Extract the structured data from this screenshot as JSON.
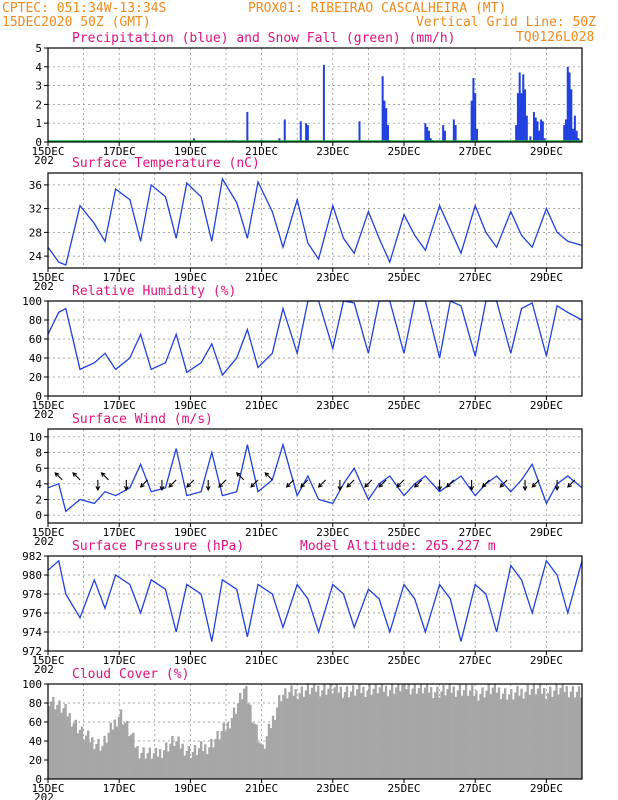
{
  "header": {
    "left1": "CPTEC:  051:34W-13:34S",
    "center1": "PROX01: RIBEIRAO CASCALHEIRA (MT)",
    "left2": "15DEC2020 50Z (GMT)",
    "right2a": "Vertical Grid Line: 50Z",
    "right2b": "TQ0126L028"
  },
  "colors": {
    "header": "#f08a1c",
    "title": "#e0127e",
    "line": "#2040e0",
    "snow": "#1aa83a",
    "cloud": "#a6a6a6",
    "arrow": "#000000"
  },
  "x_labels": [
    "15DEC",
    "17DEC",
    "19DEC",
    "21DEC",
    "23DEC",
    "25DEC",
    "27DEC",
    "29DEC"
  ],
  "stub_label": "202",
  "chart_data": [
    {
      "id": "precip",
      "type": "bar",
      "title": "Precipitation (blue) and Snow Fall (green) (mm/h)",
      "ylim": [
        0,
        5
      ],
      "yticks": [
        "0",
        "1",
        "2",
        "3",
        "4",
        "5"
      ],
      "x_days": [
        0,
        15
      ],
      "series": [
        {
          "name": "Precipitation",
          "x": [
            4.1,
            5.2,
            5.6,
            6.0,
            6.5,
            6.65,
            7.1,
            7.25,
            7.3,
            7.75,
            8.75,
            9.4,
            9.45,
            9.5,
            9.55,
            9.6,
            10.6,
            10.65,
            10.7,
            10.75,
            10.8,
            11.1,
            11.15,
            11.4,
            11.45,
            11.9,
            11.95,
            12.0,
            12.05,
            13.15,
            13.2,
            13.25,
            13.3,
            13.35,
            13.4,
            13.45,
            13.55,
            13.6,
            13.65,
            13.7,
            13.75,
            13.8,
            13.85,
            13.9,
            13.95,
            14.5,
            14.55,
            14.6,
            14.65,
            14.7,
            14.75,
            14.8,
            14.85,
            14.9
          ],
          "values": [
            0.2,
            0.1,
            1.6,
            0.1,
            0.2,
            1.2,
            1.1,
            1.0,
            0.9,
            4.1,
            1.1,
            3.5,
            2.2,
            1.8,
            0.9,
            0.1,
            1.0,
            0.8,
            0.6,
            0.2,
            0.1,
            0.9,
            0.6,
            1.2,
            0.9,
            2.2,
            3.4,
            2.6,
            0.7,
            0.9,
            2.6,
            3.7,
            2.6,
            3.6,
            2.8,
            1.4,
            0.3,
            0.1,
            1.6,
            1.3,
            1.1,
            0.6,
            1.2,
            1.1,
            0.2,
            0.9,
            1.2,
            4.0,
            3.7,
            2.8,
            0.7,
            1.4,
            0.6,
            0.2
          ]
        },
        {
          "name": "Snow Fall",
          "x": [
            0,
            15
          ],
          "values": [
            0,
            0
          ]
        }
      ]
    },
    {
      "id": "temp",
      "type": "line",
      "title": "Surface Temperature (nC)",
      "ylim": [
        22,
        38
      ],
      "yticks": [
        "24",
        "28",
        "32",
        "36"
      ],
      "x_days": [
        0,
        15
      ],
      "x": [
        0.0,
        0.3,
        0.5,
        0.9,
        1.3,
        1.6,
        1.9,
        2.3,
        2.6,
        2.9,
        3.3,
        3.6,
        3.9,
        4.3,
        4.6,
        4.9,
        5.3,
        5.6,
        5.9,
        6.3,
        6.6,
        7.0,
        7.3,
        7.6,
        8.0,
        8.3,
        8.6,
        9.0,
        9.3,
        9.6,
        10.0,
        10.3,
        10.6,
        11.0,
        11.3,
        11.6,
        12.0,
        12.3,
        12.6,
        13.0,
        13.3,
        13.6,
        14.0,
        14.3,
        14.6,
        15.0
      ],
      "values": [
        25.5,
        23,
        22.5,
        32.5,
        29.5,
        26.5,
        35.3,
        33.5,
        26.5,
        36,
        34,
        27,
        36.3,
        34,
        26.5,
        37,
        33,
        27,
        36.5,
        31.5,
        25.5,
        33.5,
        26.2,
        23.5,
        32.5,
        27,
        24.5,
        31.5,
        27,
        23,
        31,
        27.5,
        25,
        32.5,
        28.5,
        24.5,
        32.5,
        28,
        25.5,
        31.5,
        27.5,
        25.5,
        32,
        28,
        26.5,
        25.8
      ]
    },
    {
      "id": "rh",
      "type": "line",
      "title": "Relative Humidity (%)",
      "ylim": [
        0,
        100
      ],
      "yticks": [
        "0",
        "20",
        "40",
        "60",
        "80",
        "100"
      ],
      "x_days": [
        0,
        15
      ],
      "x": [
        0.0,
        0.3,
        0.5,
        0.9,
        1.3,
        1.6,
        1.9,
        2.3,
        2.6,
        2.9,
        3.3,
        3.6,
        3.9,
        4.3,
        4.6,
        4.9,
        5.3,
        5.6,
        5.9,
        6.3,
        6.6,
        7.0,
        7.3,
        7.6,
        8.0,
        8.3,
        8.6,
        9.0,
        9.3,
        9.6,
        10.0,
        10.3,
        10.6,
        11.0,
        11.3,
        11.6,
        12.0,
        12.3,
        12.6,
        13.0,
        13.3,
        13.6,
        14.0,
        14.3,
        14.6,
        15.0
      ],
      "values": [
        65,
        88,
        92,
        28,
        35,
        45,
        28,
        40,
        65,
        28,
        35,
        65,
        25,
        35,
        55,
        22,
        40,
        70,
        30,
        45,
        92,
        45,
        100,
        100,
        50,
        100,
        98,
        45,
        100,
        100,
        45,
        100,
        100,
        40,
        100,
        95,
        42,
        100,
        100,
        45,
        92,
        98,
        42,
        95,
        88,
        80
      ]
    },
    {
      "id": "wind",
      "type": "line",
      "title": "Surface Wind (m/s)",
      "ylim": [
        -1,
        11
      ],
      "yticks": [
        "0",
        "2",
        "4",
        "6",
        "8",
        "10"
      ],
      "x_days": [
        0,
        15
      ],
      "x": [
        0.0,
        0.3,
        0.5,
        0.9,
        1.3,
        1.6,
        1.9,
        2.3,
        2.6,
        2.9,
        3.3,
        3.6,
        3.9,
        4.3,
        4.6,
        4.9,
        5.3,
        5.6,
        5.9,
        6.3,
        6.6,
        7.0,
        7.3,
        7.6,
        8.0,
        8.3,
        8.6,
        9.0,
        9.3,
        9.6,
        10.0,
        10.3,
        10.6,
        11.0,
        11.3,
        11.6,
        12.0,
        12.3,
        12.6,
        13.0,
        13.3,
        13.6,
        14.0,
        14.3,
        14.6,
        15.0
      ],
      "values": [
        3.5,
        4,
        0.5,
        2,
        1.5,
        3,
        2.5,
        3.5,
        6.5,
        3,
        3.5,
        8.5,
        2.5,
        3,
        8,
        2.5,
        3,
        9,
        3,
        4.5,
        9,
        2.5,
        5,
        2,
        1.5,
        4,
        6,
        2,
        4,
        5,
        2.5,
        4,
        5,
        3,
        4,
        5,
        2.5,
        4,
        5,
        3,
        4.5,
        6.5,
        1.5,
        4,
        5,
        3.5
      ],
      "arrows": [
        {
          "x": 0.4,
          "dir": "NW"
        },
        {
          "x": 0.9,
          "dir": "NW"
        },
        {
          "x": 1.4,
          "dir": "S"
        },
        {
          "x": 1.7,
          "dir": "NW"
        },
        {
          "x": 2.2,
          "dir": "S"
        },
        {
          "x": 2.8,
          "dir": "SW"
        },
        {
          "x": 3.2,
          "dir": "S"
        },
        {
          "x": 3.6,
          "dir": "SW"
        },
        {
          "x": 4.1,
          "dir": "SW"
        },
        {
          "x": 4.5,
          "dir": "S"
        },
        {
          "x": 5.0,
          "dir": "SW"
        },
        {
          "x": 5.5,
          "dir": "NW"
        },
        {
          "x": 5.9,
          "dir": "SW"
        },
        {
          "x": 6.3,
          "dir": "NW"
        },
        {
          "x": 6.9,
          "dir": "SW"
        },
        {
          "x": 7.3,
          "dir": "SW"
        },
        {
          "x": 7.8,
          "dir": "SW"
        },
        {
          "x": 8.2,
          "dir": "S"
        },
        {
          "x": 8.6,
          "dir": "SW"
        },
        {
          "x": 9.1,
          "dir": "SW"
        },
        {
          "x": 9.5,
          "dir": "SW"
        },
        {
          "x": 10.0,
          "dir": "SW"
        },
        {
          "x": 10.5,
          "dir": "SW"
        },
        {
          "x": 11.0,
          "dir": "S"
        },
        {
          "x": 11.4,
          "dir": "SW"
        },
        {
          "x": 11.9,
          "dir": "S"
        },
        {
          "x": 12.4,
          "dir": "SW"
        },
        {
          "x": 12.9,
          "dir": "SW"
        },
        {
          "x": 13.4,
          "dir": "S"
        },
        {
          "x": 13.8,
          "dir": "SW"
        },
        {
          "x": 14.3,
          "dir": "S"
        },
        {
          "x": 14.8,
          "dir": "SW"
        }
      ]
    },
    {
      "id": "pres",
      "type": "line",
      "title": "Surface Pressure (hPa)",
      "note": "Model Altitude: 265.227 m",
      "ylim": [
        972,
        982
      ],
      "yticks": [
        "972",
        "974",
        "976",
        "978",
        "980",
        "982"
      ],
      "x_days": [
        0,
        15
      ],
      "x": [
        0.0,
        0.3,
        0.5,
        0.9,
        1.3,
        1.6,
        1.9,
        2.3,
        2.6,
        2.9,
        3.3,
        3.6,
        3.9,
        4.3,
        4.6,
        4.9,
        5.3,
        5.6,
        5.9,
        6.3,
        6.6,
        7.0,
        7.3,
        7.6,
        8.0,
        8.3,
        8.6,
        9.0,
        9.3,
        9.6,
        10.0,
        10.3,
        10.6,
        11.0,
        11.3,
        11.6,
        12.0,
        12.3,
        12.6,
        13.0,
        13.3,
        13.6,
        14.0,
        14.3,
        14.6,
        15.0
      ],
      "values": [
        980.5,
        981.5,
        978,
        975.5,
        979.5,
        976.5,
        980,
        979,
        976,
        979.5,
        978.5,
        974,
        979,
        978,
        973,
        979.5,
        978.5,
        973.5,
        979,
        978,
        974.5,
        979,
        977.5,
        974,
        979,
        978,
        974.5,
        978.5,
        977.5,
        974,
        979,
        977.5,
        974,
        979,
        977.5,
        973,
        979,
        978,
        974,
        981,
        979.5,
        976,
        981.5,
        980,
        976,
        981.5
      ]
    },
    {
      "id": "cloud",
      "type": "bar",
      "title": "Cloud Cover (%)",
      "ylim": [
        0,
        100
      ],
      "yticks": [
        "0",
        "20",
        "40",
        "60",
        "80",
        "100"
      ],
      "x_days": [
        0,
        15
      ],
      "x": [
        0.0,
        0.5,
        1.0,
        1.5,
        2.0,
        2.5,
        3.0,
        3.5,
        4.0,
        4.5,
        5.0,
        5.5,
        6.0,
        6.5,
        7.0,
        7.5,
        8.0,
        8.5,
        9.0,
        9.5,
        10.0,
        10.5,
        11.0,
        11.5,
        12.0,
        12.5,
        13.0,
        13.5,
        14.0,
        14.5,
        15.0
      ],
      "values": [
        85,
        70,
        45,
        35,
        70,
        30,
        25,
        40,
        28,
        35,
        55,
        95,
        30,
        88,
        92,
        95,
        95,
        92,
        95,
        95,
        98,
        95,
        92,
        95,
        90,
        95,
        88,
        95,
        92,
        95,
        90
      ]
    }
  ]
}
